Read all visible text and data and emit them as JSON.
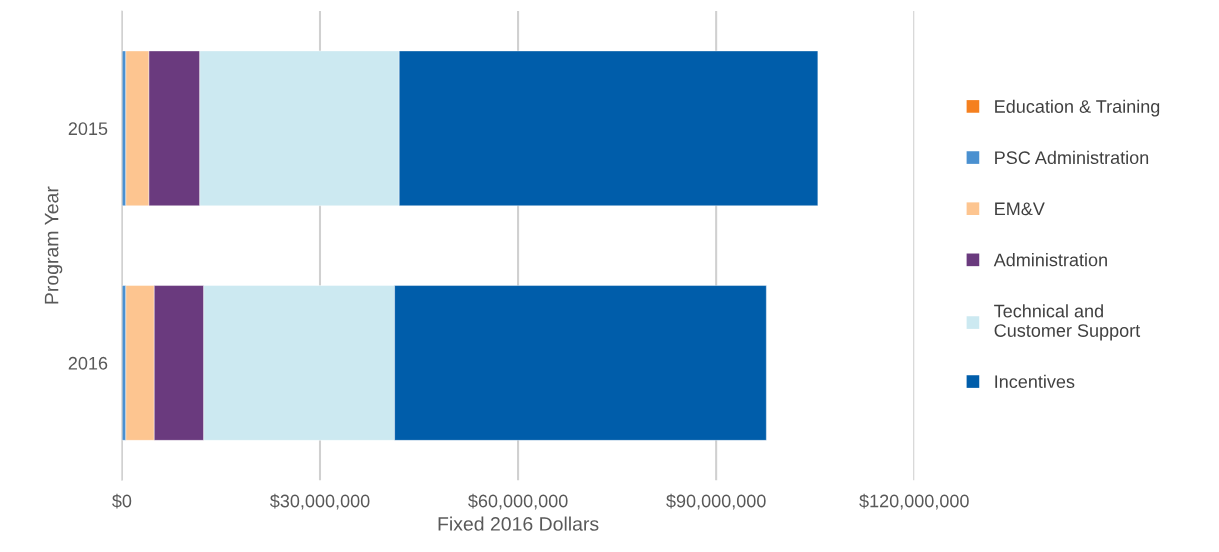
{
  "chart_data": {
    "type": "bar",
    "orientation": "horizontal",
    "stacked": true,
    "xlabel": "Fixed 2016 Dollars",
    "ylabel": "Program Year",
    "categories": [
      "2015",
      "2016"
    ],
    "series": [
      {
        "name": "Education & Training",
        "color": "#f5801f",
        "values": [
          null,
          null
        ]
      },
      {
        "name": "PSC Administration",
        "color": "#4a90d0",
        "values": [
          600000,
          600000
        ]
      },
      {
        "name": "EM&V",
        "color": "#fdc590",
        "values": [
          3500000,
          4300000
        ]
      },
      {
        "name": "Administration",
        "color": "#6a3a7e",
        "values": [
          7700000,
          7500000
        ]
      },
      {
        "name": "Technical and Customer Support",
        "color": "#cce9f1",
        "values": [
          30200000,
          28900000
        ]
      },
      {
        "name": "Incentives",
        "color": "#005daa",
        "values": [
          63400000,
          56300000
        ]
      }
    ],
    "xlim": [
      0,
      120000000
    ],
    "xticks": [
      {
        "value": 0,
        "label": "$0"
      },
      {
        "value": 30000000,
        "label": "$30,000,000"
      },
      {
        "value": 60000000,
        "label": "$60,000,000"
      },
      {
        "value": 90000000,
        "label": "$90,000,000"
      },
      {
        "value": 120000000,
        "label": "$120,000,000"
      }
    ],
    "grid": "x",
    "legend": "right"
  }
}
